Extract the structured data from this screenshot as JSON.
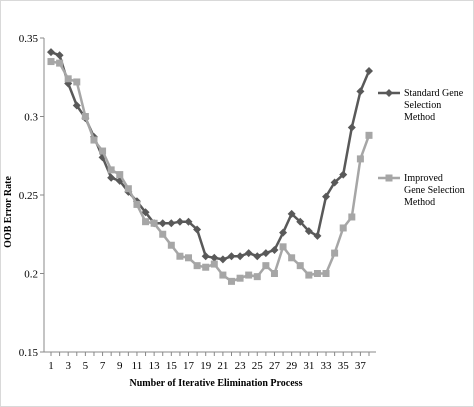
{
  "chart_data": {
    "type": "line",
    "title": "",
    "xlabel": "Number  of Iterative Elimination  Process",
    "ylabel": "OOB Error  Rate",
    "x": [
      1,
      2,
      3,
      4,
      5,
      6,
      7,
      8,
      9,
      10,
      11,
      12,
      13,
      14,
      15,
      16,
      17,
      18,
      19,
      20,
      21,
      22,
      23,
      24,
      25,
      26,
      27,
      28,
      29,
      30,
      31,
      32,
      33,
      34,
      35,
      36,
      37,
      38
    ],
    "x_tick_labels": [
      "1",
      "3",
      "5",
      "7",
      "9",
      "11",
      "13",
      "15",
      "17",
      "19",
      "21",
      "23",
      "25",
      "27",
      "29",
      "31",
      "33",
      "35",
      "37"
    ],
    "x_tick_values": [
      1,
      3,
      5,
      7,
      9,
      11,
      13,
      15,
      17,
      19,
      21,
      23,
      25,
      27,
      29,
      31,
      33,
      35,
      37
    ],
    "y_tick_labels": [
      "0.15",
      "0.2",
      "0.25",
      "0.3",
      "0.35"
    ],
    "y_tick_values": [
      0.15,
      0.2,
      0.25,
      0.3,
      0.35
    ],
    "ylim": [
      0.15,
      0.35
    ],
    "xlim": [
      1,
      38
    ],
    "grid": false,
    "legend_position": "right",
    "series": [
      {
        "name": "Standard Gene Selection Method",
        "legend_lines": [
          "Standard Gene",
          "Selection",
          "Method"
        ],
        "color": "#595959",
        "marker": "diamond",
        "values": [
          0.341,
          0.339,
          0.321,
          0.307,
          0.299,
          0.287,
          0.274,
          0.261,
          0.259,
          0.252,
          0.246,
          0.239,
          0.232,
          0.232,
          0.232,
          0.233,
          0.233,
          0.228,
          0.211,
          0.21,
          0.209,
          0.211,
          0.211,
          0.213,
          0.211,
          0.213,
          0.215,
          0.226,
          0.238,
          0.233,
          0.227,
          0.224,
          0.249,
          0.258,
          0.263,
          0.293,
          0.316,
          0.329
        ]
      },
      {
        "name": "Improved Gene Selection Method",
        "legend_lines": [
          "Improved",
          "Gene Selection",
          "Method"
        ],
        "color": "#a6a6a6",
        "marker": "square",
        "values": [
          0.335,
          0.334,
          0.324,
          0.322,
          0.3,
          0.285,
          0.278,
          0.266,
          0.263,
          0.254,
          0.244,
          0.233,
          0.232,
          0.225,
          0.218,
          0.211,
          0.21,
          0.205,
          0.204,
          0.206,
          0.199,
          0.195,
          0.197,
          0.199,
          0.198,
          0.205,
          0.2,
          0.217,
          0.21,
          0.205,
          0.199,
          0.2,
          0.2,
          0.213,
          0.229,
          0.236,
          0.273,
          0.288
        ]
      }
    ]
  }
}
